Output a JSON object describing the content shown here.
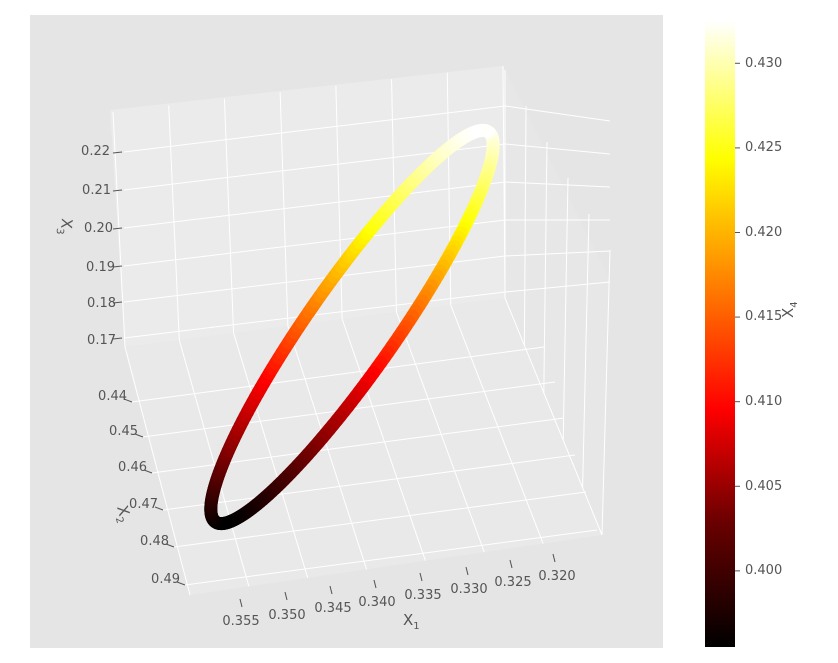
{
  "chart_data": {
    "type": "3d-line",
    "title": "",
    "axes": {
      "x": {
        "label_base": "X",
        "label_sub": "1",
        "ticks": [
          "0.355",
          "0.350",
          "0.345",
          "0.340",
          "0.335",
          "0.330",
          "0.325",
          "0.320"
        ],
        "range": [
          0.3175,
          0.3575
        ],
        "inverted": true
      },
      "y": {
        "label_base": "X",
        "label_sub": "2",
        "ticks": [
          "0.44",
          "0.45",
          "0.46",
          "0.47",
          "0.48",
          "0.49"
        ],
        "range": [
          0.435,
          0.495
        ]
      },
      "z": {
        "label_base": "X",
        "label_sub": "3",
        "ticks": [
          "0.17",
          "0.18",
          "0.19",
          "0.20",
          "0.21",
          "0.22"
        ],
        "range": [
          0.165,
          0.225
        ]
      }
    },
    "colorbar": {
      "label_base": "X",
      "label_sub": "4",
      "ticks": [
        "0.400",
        "0.405",
        "0.410",
        "0.415",
        "0.420",
        "0.425",
        "0.430"
      ],
      "range": [
        0.3955,
        0.4325
      ],
      "colormap": "hot"
    },
    "curve": {
      "description_free_points": true,
      "color_stops": [
        "#000000",
        "#7a0000",
        "#ff0000",
        "#ff8000",
        "#ffff00",
        "#ffffff"
      ]
    },
    "grid": true,
    "background": "#e5e5e5"
  }
}
